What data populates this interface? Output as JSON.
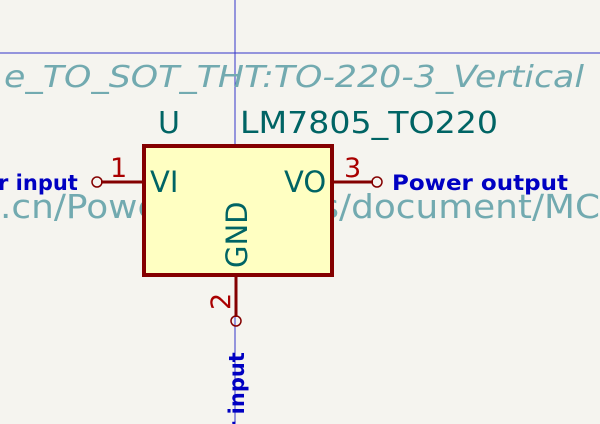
{
  "symbol": {
    "reference": "U",
    "value": "LM7805_TO220",
    "footprint": "e_TO_SOT_THT:TO-220-3_Vertical",
    "datasheet": ".cn/PowerSolutions/document/MC"
  },
  "pins": [
    {
      "number": "1",
      "name": "VI",
      "net": "r input"
    },
    {
      "number": "3",
      "name": "VO",
      "net": "Power output"
    },
    {
      "number": "2",
      "name": "GND",
      "net": "r input"
    }
  ],
  "colors": {
    "background": "#f5f4ef",
    "body_fill": "#ffffc2",
    "body_stroke": "#840000",
    "pin": "#840000",
    "pin_number": "#a90000",
    "pin_name": "#006464",
    "field_text": "#006464",
    "hidden_field": "#72aab0",
    "net_label": "#0000c2",
    "crosshair": "#3434c8"
  }
}
